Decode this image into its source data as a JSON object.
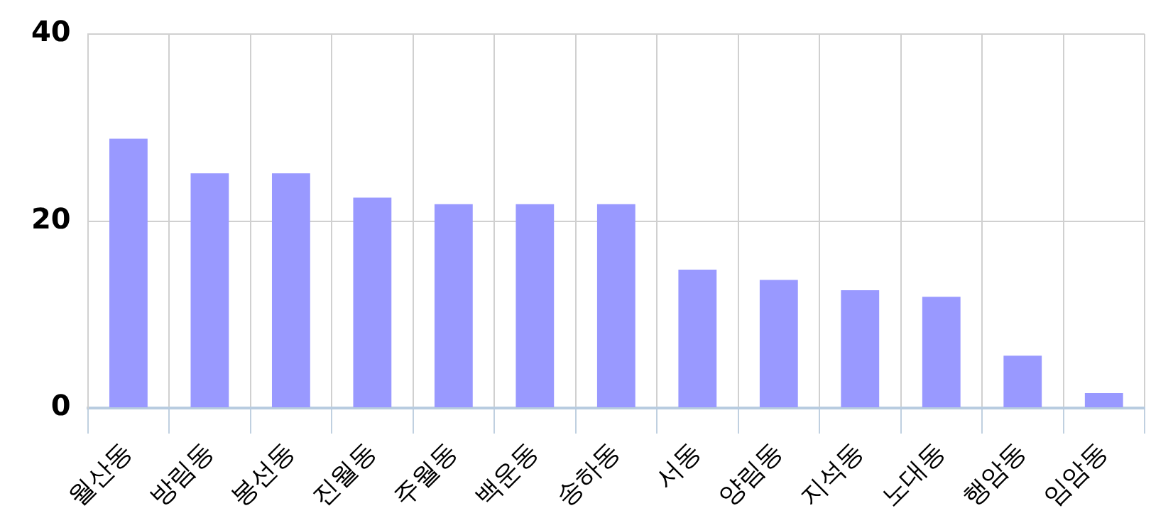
{
  "chart_data": {
    "type": "bar",
    "categories": [
      "월산동",
      "방림동",
      "봉선동",
      "진월동",
      "주월동",
      "백운동",
      "송하동",
      "서동",
      "양림동",
      "지석동",
      "노대동",
      "행암동",
      "임암동"
    ],
    "values": [
      28.8,
      25.1,
      25.1,
      22.5,
      21.8,
      21.8,
      21.8,
      14.8,
      13.7,
      12.6,
      11.9,
      5.6,
      1.6
    ],
    "color": "#9999ff",
    "ylim": [
      0,
      40
    ],
    "yticks": [
      0,
      20,
      40
    ],
    "grid": true,
    "legend": false
  }
}
